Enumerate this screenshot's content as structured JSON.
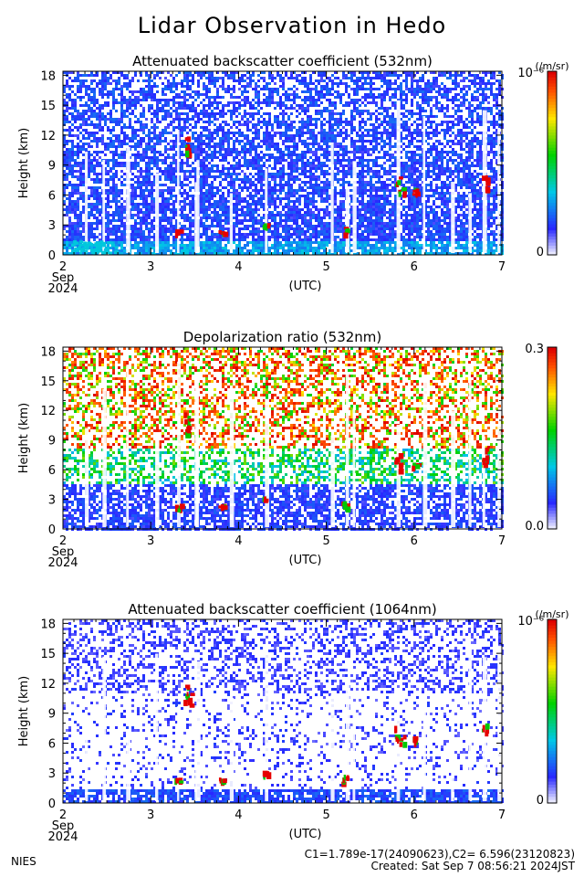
{
  "page": {
    "title": "Lidar Observation in Hedo",
    "footer_left": "NIES",
    "footer_right_line1": "C1=1.789e-17(24090623),C2= 6.596(23120823)",
    "footer_right_line2": "Created: Sat Sep  7 08:56:21 2024JST"
  },
  "chart_data": [
    {
      "type": "heatmap",
      "title": "Attenuated backscatter coefficient (532nm)",
      "ylabel": "Height (km)",
      "xlabel": "(UTC)",
      "x_ticks": [
        "2",
        "3",
        "4",
        "5",
        "6",
        "7"
      ],
      "x_tick_values": [
        2,
        3,
        4,
        5,
        6,
        7
      ],
      "x_sub_label": "Sep",
      "x_year_label": "2024",
      "y_ticks": [
        "0",
        "3",
        "6",
        "9",
        "12",
        "15",
        "18"
      ],
      "y_tick_values": [
        0,
        3,
        6,
        9,
        12,
        15,
        18
      ],
      "xlim": [
        2,
        7
      ],
      "ylim": [
        0,
        18.4
      ],
      "colorbar": {
        "unit": "(/m/sr)",
        "max_label": "10⁻⁶",
        "min_label": "0",
        "scale": "rainbow"
      },
      "color_scheme": "backscatter"
    },
    {
      "type": "heatmap",
      "title": "Depolarization ratio (532nm)",
      "ylabel": "Height (km)",
      "xlabel": "(UTC)",
      "x_ticks": [
        "2",
        "3",
        "4",
        "5",
        "6",
        "7"
      ],
      "x_tick_values": [
        2,
        3,
        4,
        5,
        6,
        7
      ],
      "x_sub_label": "Sep",
      "x_year_label": "2024",
      "y_ticks": [
        "0",
        "3",
        "6",
        "9",
        "12",
        "15",
        "18"
      ],
      "y_tick_values": [
        0,
        3,
        6,
        9,
        12,
        15,
        18
      ],
      "xlim": [
        2,
        7
      ],
      "ylim": [
        0,
        18.4
      ],
      "colorbar": {
        "unit": "",
        "max_label": "0.3",
        "min_label": "0.0",
        "scale": "rainbow"
      },
      "color_scheme": "depol"
    },
    {
      "type": "heatmap",
      "title": "Attenuated backscatter coefficient (1064nm)",
      "ylabel": "Height (km)",
      "xlabel": "(UTC)",
      "x_ticks": [
        "2",
        "3",
        "4",
        "5",
        "6",
        "7"
      ],
      "x_tick_values": [
        2,
        3,
        4,
        5,
        6,
        7
      ],
      "x_sub_label": "Sep",
      "x_year_label": "2024",
      "y_ticks": [
        "0",
        "3",
        "6",
        "9",
        "12",
        "15",
        "18"
      ],
      "y_tick_values": [
        0,
        3,
        6,
        9,
        12,
        15,
        18
      ],
      "xlim": [
        2,
        7
      ],
      "ylim": [
        0,
        18.4
      ],
      "colorbar": {
        "unit": "(/m/sr)",
        "max_label": "10⁻⁶",
        "min_label": "0",
        "scale": "rainbow"
      },
      "color_scheme": "backscatter1064"
    }
  ]
}
